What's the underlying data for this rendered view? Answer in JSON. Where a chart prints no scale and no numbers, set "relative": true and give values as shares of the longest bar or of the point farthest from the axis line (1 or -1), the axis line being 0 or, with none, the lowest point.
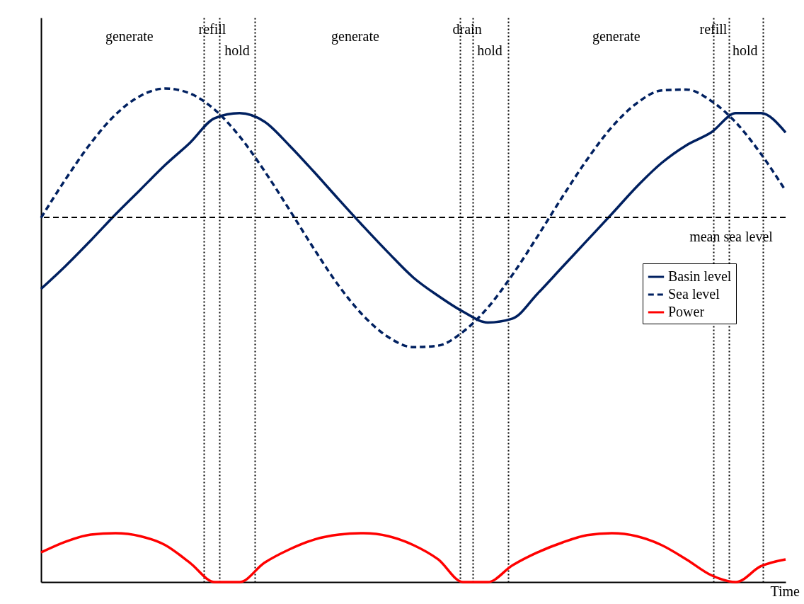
{
  "chart_data": {
    "type": "line",
    "relative": true,
    "xlabel": "Time",
    "legend": "right",
    "grid": "x",
    "categories": [
      null,
      null,
      null,
      null,
      null,
      null,
      null,
      null,
      null,
      null,
      null,
      null,
      null,
      null,
      null,
      null,
      null,
      null,
      null,
      null,
      null,
      null,
      null,
      null,
      null,
      null,
      null,
      null,
      null,
      null,
      null
    ],
    "series": [
      {
        "name": "Basin level",
        "color": "#002060",
        "line_style": "solid",
        "values": [
          0.594,
          0.641,
          0.692,
          0.745,
          0.795,
          0.845,
          0.89,
          0.94,
          0.95,
          0.933,
          0.885,
          0.831,
          0.775,
          0.72,
          0.667,
          0.617,
          0.58,
          0.548,
          0.526,
          0.534,
          0.584,
          0.638,
          0.692,
          0.746,
          0.801,
          0.849,
          0.885,
          0.911,
          0.95,
          0.95,
          0.911
        ]
      },
      {
        "name": "Sea level",
        "color": "#002060",
        "line_style": "dashed",
        "values": [
          0.738,
          0.817,
          0.889,
          0.947,
          0.985,
          1.0,
          0.99,
          0.957,
          0.903,
          0.833,
          0.755,
          0.675,
          0.6,
          0.539,
          0.496,
          0.476,
          0.479,
          0.507,
          0.556,
          0.623,
          0.7,
          0.78,
          0.856,
          0.922,
          0.97,
          0.996,
          0.998,
          0.975,
          0.931,
          0.868,
          0.793
        ]
      },
      {
        "name": "Power",
        "color": "#ff0000",
        "line_style": "solid",
        "values": [
          0.06,
          0.082,
          0.096,
          0.099,
          0.093,
          0.075,
          0.039,
          0,
          0,
          0.039,
          0.066,
          0.086,
          0.096,
          0.099,
          0.093,
          0.075,
          0.046,
          0,
          0,
          0.034,
          0.06,
          0.08,
          0.095,
          0.099,
          0.093,
          0.075,
          0.046,
          0.014,
          0,
          0.032,
          0.046
        ]
      }
    ],
    "ref_lines": [
      {
        "axis": "y",
        "value": 0.739,
        "label": "mean sea level",
        "color": "#000000",
        "line_style": "dashed"
      }
    ],
    "annotations": [
      "generate",
      "refill",
      "hold",
      "generate",
      "drain",
      "hold",
      "generate",
      "refill",
      "hold"
    ]
  }
}
